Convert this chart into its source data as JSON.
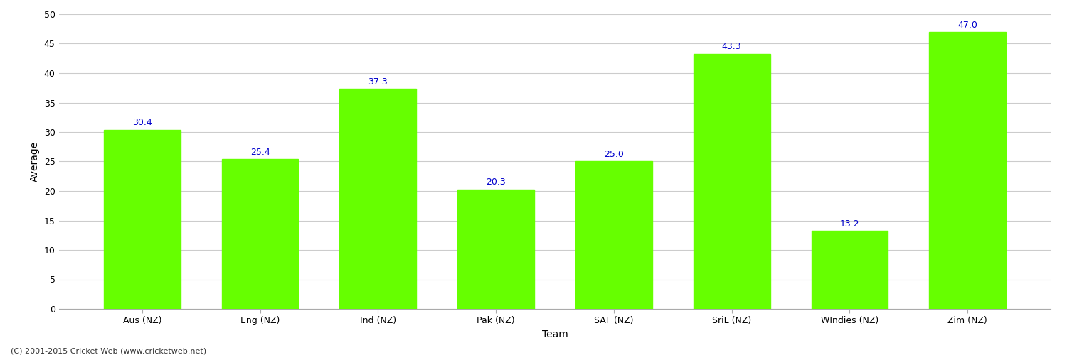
{
  "categories": [
    "Aus (NZ)",
    "Eng (NZ)",
    "Ind (NZ)",
    "Pak (NZ)",
    "SAF (NZ)",
    "SriL (NZ)",
    "WIndies (NZ)",
    "Zim (NZ)"
  ],
  "values": [
    30.4,
    25.4,
    37.3,
    20.3,
    25.0,
    43.3,
    13.2,
    47.0
  ],
  "bar_color": "#66ff00",
  "bar_edge_color": "#66ff00",
  "title": "",
  "xlabel": "Team",
  "ylabel": "Average",
  "ylim": [
    0,
    50
  ],
  "yticks": [
    0,
    5,
    10,
    15,
    20,
    25,
    30,
    35,
    40,
    45,
    50
  ],
  "label_color": "#0000cc",
  "label_fontsize": 9,
  "axis_label_fontsize": 10,
  "tick_fontsize": 9,
  "background_color": "#ffffff",
  "grid_color": "#cccccc",
  "footer_text": "(C) 2001-2015 Cricket Web (www.cricketweb.net)",
  "footer_fontsize": 8
}
